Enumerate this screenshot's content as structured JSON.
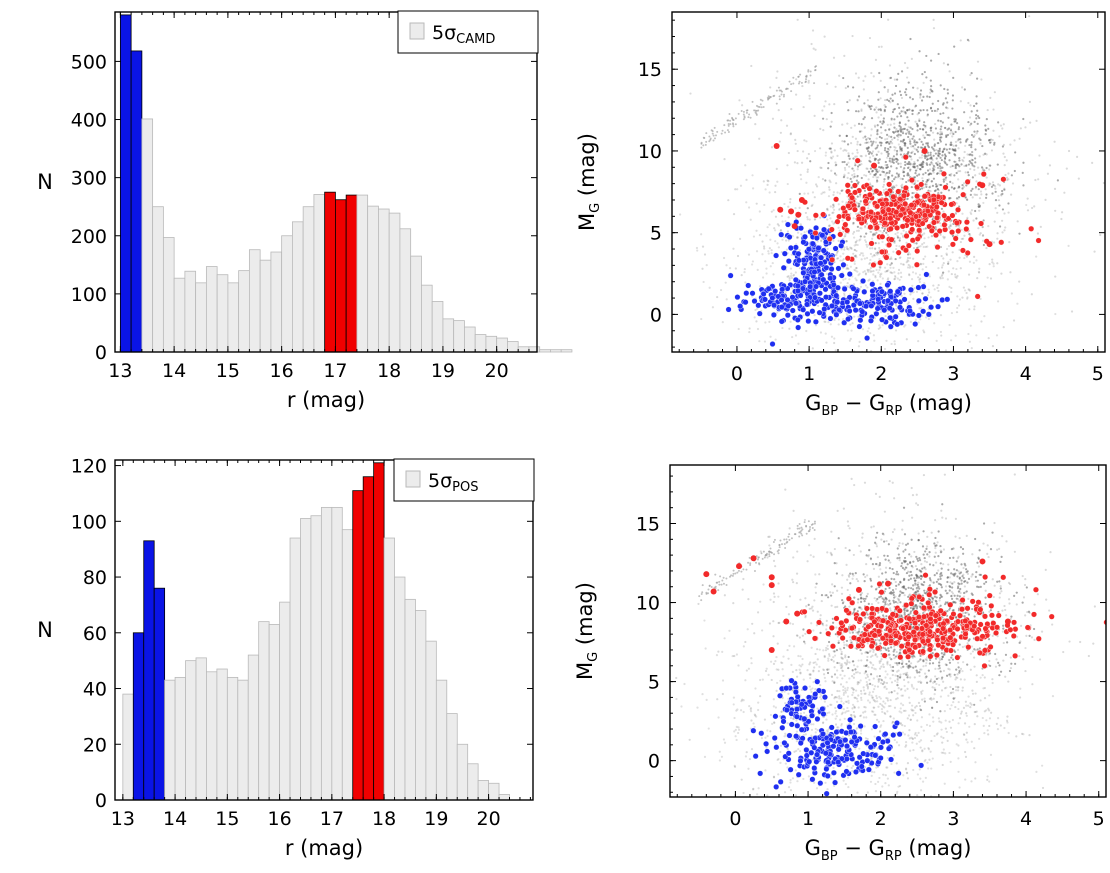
{
  "colors": {
    "bar_fill": "#ececec",
    "bar_edge": "#b9b9b9",
    "blue": "#0a14e6",
    "red": "#f00000",
    "blue_point": "#1f2ff0",
    "red_point": "#f22a2a",
    "density": "#2b2b2b"
  },
  "chart_data": [
    {
      "type": "bar",
      "panel": "top-left",
      "xlabel": "r (mag)",
      "ylabel": "N",
      "xlim": [
        12.9,
        20.75
      ],
      "ylim": [
        0,
        585
      ],
      "xticks": [
        "13",
        "14",
        "15",
        "16",
        "17",
        "18",
        "19",
        "20"
      ],
      "yticks": [
        "0",
        "100",
        "200",
        "300",
        "400",
        "500"
      ],
      "bin_start": 13.0,
      "bin_width": 0.2,
      "values": [
        580,
        518,
        401,
        250,
        197,
        127,
        139,
        119,
        147,
        133,
        119,
        140,
        176,
        158,
        172,
        200,
        224,
        250,
        271,
        275,
        262,
        270,
        270,
        251,
        246,
        239,
        212,
        165,
        115,
        87,
        57,
        54,
        43,
        30,
        27,
        24,
        18,
        9,
        9,
        4,
        4,
        4
      ],
      "highlight": {
        "blue": [
          0,
          1
        ],
        "red": [
          19,
          20,
          21
        ]
      },
      "legend": {
        "symbol": "5σ",
        "subscript": "CAMD",
        "position": "top-right"
      }
    },
    {
      "type": "scatter",
      "panel": "top-right",
      "xlabel_main": "G",
      "xlabel_sub1": "BP",
      "xlabel_mid": " − G",
      "xlabel_sub2": "RP",
      "xlabel_tail": " (mag)",
      "ylabel_main": "M",
      "ylabel_sub": "G",
      "ylabel_tail": " (mag)",
      "xlim": [
        -0.9,
        5.1
      ],
      "ylim": [
        18.5,
        -2.3
      ],
      "xticks": [
        "0",
        "1",
        "2",
        "3",
        "4",
        "5"
      ],
      "yticks": [
        "0",
        "5",
        "10",
        "15"
      ],
      "blue_clumps": [
        {
          "x": 1.05,
          "y": 3.2,
          "sx": 0.18,
          "sy": 1.2,
          "n": 170
        },
        {
          "x": 1.9,
          "y": 0.7,
          "sx": 0.35,
          "sy": 0.65,
          "n": 140
        },
        {
          "x": 0.75,
          "y": 0.8,
          "sx": 0.35,
          "sy": 0.7,
          "n": 120
        }
      ],
      "red_clumps": [
        {
          "x": 2.2,
          "y": 6.3,
          "sx": 0.42,
          "sy": 0.75,
          "n": 260
        },
        {
          "x": 2.5,
          "y": 5.2,
          "sx": 0.7,
          "sy": 1.6,
          "n": 70
        }
      ],
      "red_outliers": [
        [
          0.55,
          10.3
        ],
        [
          0.6,
          6.4
        ],
        [
          0.75,
          6.3
        ],
        [
          0.85,
          6.1
        ],
        [
          1.9,
          9.1
        ],
        [
          2.6,
          10.0
        ],
        [
          3.4,
          7.9
        ],
        [
          3.5,
          4.3
        ],
        [
          0.8,
          5.4
        ],
        [
          0.9,
          7.0
        ]
      ]
    },
    {
      "type": "bar",
      "panel": "bottom-left",
      "xlabel": "r (mag)",
      "ylabel": "N",
      "xlim": [
        12.85,
        20.85
      ],
      "ylim": [
        0,
        122
      ],
      "xticks": [
        "13",
        "14",
        "15",
        "16",
        "17",
        "18",
        "19",
        "20"
      ],
      "yticks": [
        "0",
        "20",
        "40",
        "60",
        "80",
        "100",
        "120"
      ],
      "bin_start": 13.0,
      "bin_width": 0.2,
      "values": [
        38,
        60,
        93,
        76,
        43,
        44,
        50,
        51,
        46,
        47,
        44,
        43,
        52,
        64,
        63,
        71,
        94,
        101,
        102,
        105,
        105,
        97,
        111,
        116,
        121,
        94,
        80,
        72,
        68,
        57,
        43,
        31,
        20,
        13,
        7,
        6,
        2
      ],
      "highlight": {
        "blue": [
          1,
          2,
          3
        ],
        "red": [
          22,
          23,
          24
        ]
      },
      "legend": {
        "symbol": "5σ",
        "subscript": "POS",
        "position": "top-right"
      }
    },
    {
      "type": "scatter",
      "panel": "bottom-right",
      "xlabel_main": "G",
      "xlabel_sub1": "BP",
      "xlabel_mid": " − G",
      "xlabel_sub2": "RP",
      "xlabel_tail": " (mag)",
      "ylabel_main": "M",
      "ylabel_sub": "G",
      "ylabel_tail": " (mag)",
      "xlim": [
        -0.9,
        5.1
      ],
      "ylim": [
        18.7,
        -2.3
      ],
      "xticks": [
        "0",
        "1",
        "2",
        "3",
        "4",
        "5"
      ],
      "yticks": [
        "0",
        "5",
        "10",
        "15"
      ],
      "blue_clumps": [
        {
          "x": 1.3,
          "y": 0.8,
          "sx": 0.45,
          "sy": 0.9,
          "n": 190
        },
        {
          "x": 0.9,
          "y": 3.6,
          "sx": 0.15,
          "sy": 0.8,
          "n": 60
        }
      ],
      "red_clumps": [
        {
          "x": 2.5,
          "y": 8.2,
          "sx": 0.6,
          "sy": 0.7,
          "n": 280
        },
        {
          "x": 2.8,
          "y": 9.2,
          "sx": 0.7,
          "sy": 1.3,
          "n": 80
        }
      ],
      "red_outliers": [
        [
          -0.4,
          11.8
        ],
        [
          -0.3,
          10.7
        ],
        [
          0.05,
          12.3
        ],
        [
          0.25,
          12.8
        ],
        [
          0.5,
          11.1
        ],
        [
          0.5,
          11.6
        ],
        [
          0.7,
          8.8
        ],
        [
          0.85,
          9.3
        ],
        [
          1.7,
          10.8
        ],
        [
          2.1,
          11.2
        ],
        [
          3.4,
          12.6
        ],
        [
          3.75,
          8.8
        ],
        [
          0.5,
          7.0
        ]
      ]
    }
  ]
}
